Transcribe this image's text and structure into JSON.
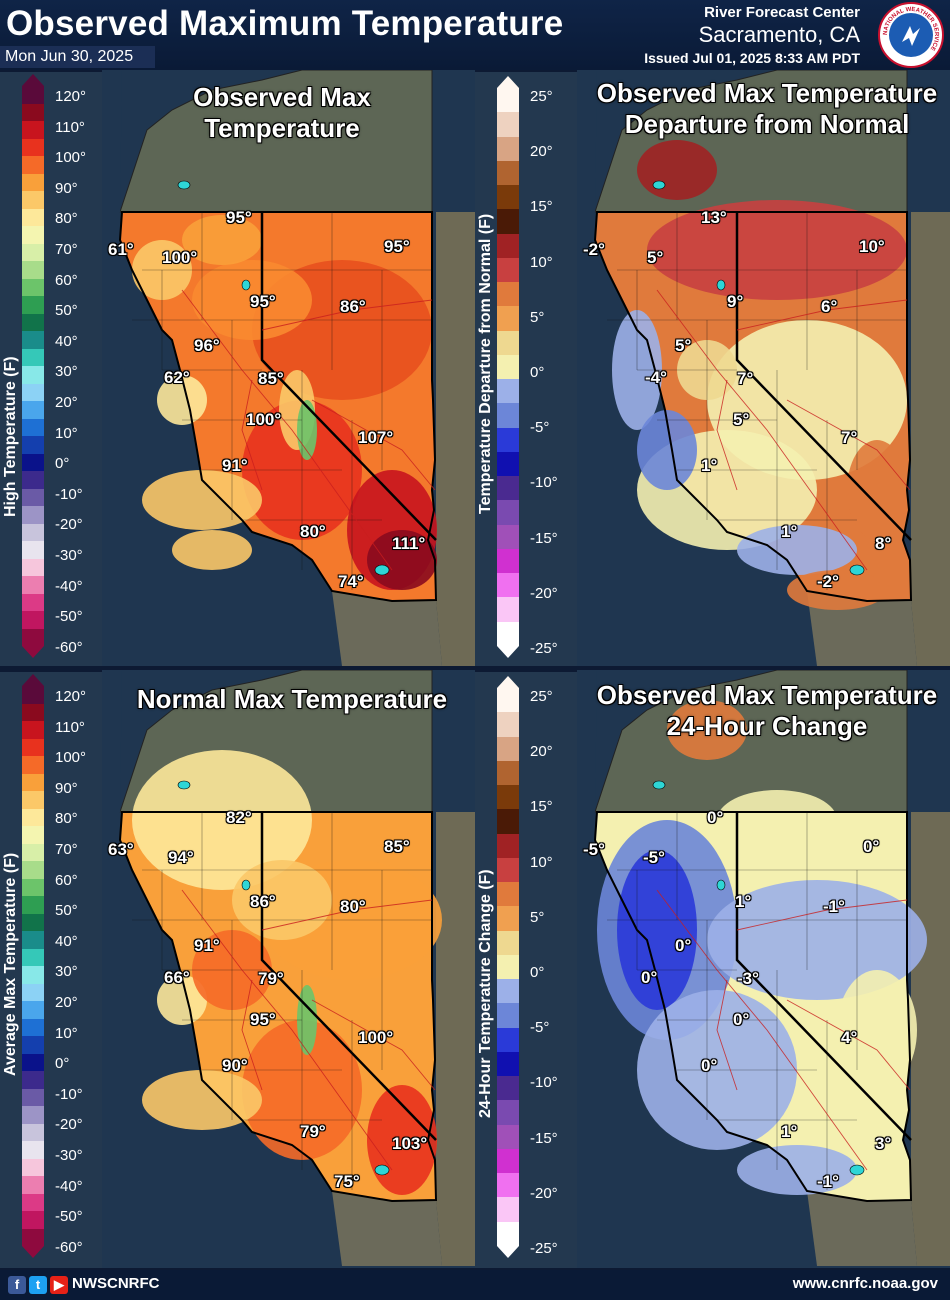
{
  "header": {
    "title": "Observed Maximum Temperature",
    "date": "Mon Jun 30, 2025",
    "rfc_line1": "River Forecast Center",
    "rfc_line2": "Sacramento, CA",
    "issued": "Issued Jul 01, 2025 8:33 AM PDT",
    "logo_text": "NATIONAL WEATHER SERVICE"
  },
  "footer": {
    "handle": "NWSCNRFC",
    "website": "www.cnrfc.noaa.gov",
    "social_icons": [
      "facebook-icon",
      "twitter-icon",
      "youtube-icon"
    ]
  },
  "legends": {
    "high_temp": {
      "title": "High Temperature (F)",
      "ticks": [
        "120°",
        "110°",
        "100°",
        "90°",
        "80°",
        "70°",
        "60°",
        "50°",
        "40°",
        "30°",
        "20°",
        "10°",
        "0°",
        "-10°",
        "-20°",
        "-30°",
        "-40°",
        "-50°",
        "-60°"
      ]
    },
    "departure": {
      "title": "Temperature Departure from Normal (F)",
      "ticks": [
        "25°",
        "20°",
        "15°",
        "10°",
        "5°",
        "0°",
        "-5°",
        "-10°",
        "-15°",
        "-20°",
        "-25°"
      ]
    },
    "avg_temp": {
      "title": "Average Max Temperature (F)",
      "ticks": [
        "120°",
        "110°",
        "100°",
        "90°",
        "80°",
        "70°",
        "60°",
        "50°",
        "40°",
        "30°",
        "20°",
        "10°",
        "0°",
        "-10°",
        "-20°",
        "-30°",
        "-40°",
        "-50°",
        "-60°"
      ]
    },
    "change": {
      "title": "24-Hour Temperature Change (F)",
      "ticks": [
        "25°",
        "20°",
        "15°",
        "10°",
        "5°",
        "0°",
        "-5°",
        "-10°",
        "-15°",
        "-20°",
        "-25°"
      ]
    }
  },
  "temp_scale_colors": [
    "#5a0a3a",
    "#8a0a1e",
    "#c8141e",
    "#e8321e",
    "#f56a28",
    "#f9a03a",
    "#fbc868",
    "#fde89a",
    "#f4f5b0",
    "#d8efa8",
    "#a8dc8a",
    "#6cc46a",
    "#2e9e52",
    "#11734a",
    "#1a8c8a",
    "#35c8b8",
    "#88e8e8",
    "#8cd2f5",
    "#4aa6ec",
    "#1e70d4",
    "#143fae",
    "#0a128a",
    "#3c2a8c",
    "#6a5aa6",
    "#9c94c6",
    "#c8c4dc",
    "#e8e4ee",
    "#f6c6dc",
    "#ec7eb0",
    "#dc3a86",
    "#c01660",
    "#8e0a3e"
  ],
  "dep_scale_colors": [
    "#fff7f0",
    "#eed2c0",
    "#d8a484",
    "#b06430",
    "#7a3a0a",
    "#4a1a06",
    "#a02224",
    "#c84040",
    "#e07a3c",
    "#f0a050",
    "#eed890",
    "#f4f0b0",
    "#9cb0e8",
    "#6c86d8",
    "#2a3ad8",
    "#1010b0",
    "#4a2a90",
    "#7a4ab0",
    "#a050b8",
    "#d030d0",
    "#f070f0",
    "#fac6f6",
    "#ffffff"
  ],
  "panels": {
    "observed": {
      "title_line1": "Observed Max",
      "title_line2": "Temperature",
      "labels": [
        "95°",
        "61°",
        "100°",
        "95°",
        "95°",
        "86°",
        "96°",
        "62°",
        "85°",
        "100°",
        "107°",
        "91°",
        "80°",
        "111°",
        "74°"
      ]
    },
    "departure": {
      "title_line1": "Observed Max Temperature",
      "title_line2": "Departure from Normal",
      "labels": [
        "13°",
        "-2°",
        "5°",
        "10°",
        "9°",
        "6°",
        "5°",
        "-4°",
        "7°",
        "5°",
        "7°",
        "1°",
        "1°",
        "8°",
        "-2°"
      ]
    },
    "normal": {
      "title_line1": "Normal Max Temperature",
      "title_line2": "",
      "labels": [
        "82°",
        "63°",
        "94°",
        "85°",
        "86°",
        "80°",
        "91°",
        "66°",
        "79°",
        "95°",
        "100°",
        "90°",
        "79°",
        "103°",
        "75°"
      ]
    },
    "change": {
      "title_line1": "Observed Max Temperature",
      "title_line2": "24-Hour Change",
      "labels": [
        "0°",
        "-5°",
        "-5°",
        "0°",
        "1°",
        "-1°",
        "0°",
        "0°",
        "-3°",
        "0°",
        "4°",
        "0°",
        "1°",
        "3°",
        "-1°"
      ]
    }
  }
}
